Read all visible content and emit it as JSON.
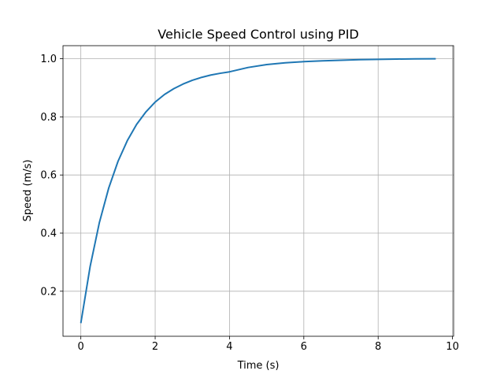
{
  "chart_data": {
    "type": "line",
    "title": "Vehicle Speed Control using PID",
    "xlabel": "Time (s)",
    "ylabel": "Speed (m/s)",
    "xlim": [
      -0.48,
      10.03
    ],
    "ylim": [
      0.045,
      1.045
    ],
    "xticks": [
      0,
      2,
      4,
      6,
      8,
      10
    ],
    "yticks": [
      0.2,
      0.4,
      0.6,
      0.8,
      1.0
    ],
    "xtick_labels": [
      "0",
      "2",
      "4",
      "6",
      "8",
      "10"
    ],
    "ytick_labels": [
      "0.2",
      "0.4",
      "0.6",
      "0.8",
      "1.0"
    ],
    "grid": true,
    "color": "#1f77b4",
    "series": [
      {
        "x": [
          0,
          0.25,
          0.5,
          0.75,
          1.0,
          1.25,
          1.5,
          1.75,
          2.0,
          2.25,
          2.5,
          2.75,
          3.0,
          3.25,
          3.5,
          3.75,
          4.0,
          4.5,
          5.0,
          5.5,
          6.0,
          6.5,
          7.0,
          7.5,
          8.0,
          8.5,
          9.0,
          9.55
        ],
        "y": [
          0.09,
          0.285,
          0.437,
          0.555,
          0.647,
          0.718,
          0.774,
          0.817,
          0.851,
          0.877,
          0.897,
          0.913,
          0.926,
          0.936,
          0.944,
          0.95,
          0.955,
          0.97,
          0.98,
          0.986,
          0.99,
          0.993,
          0.995,
          0.997,
          0.998,
          0.999,
          0.9995,
          1.0
        ]
      }
    ]
  }
}
